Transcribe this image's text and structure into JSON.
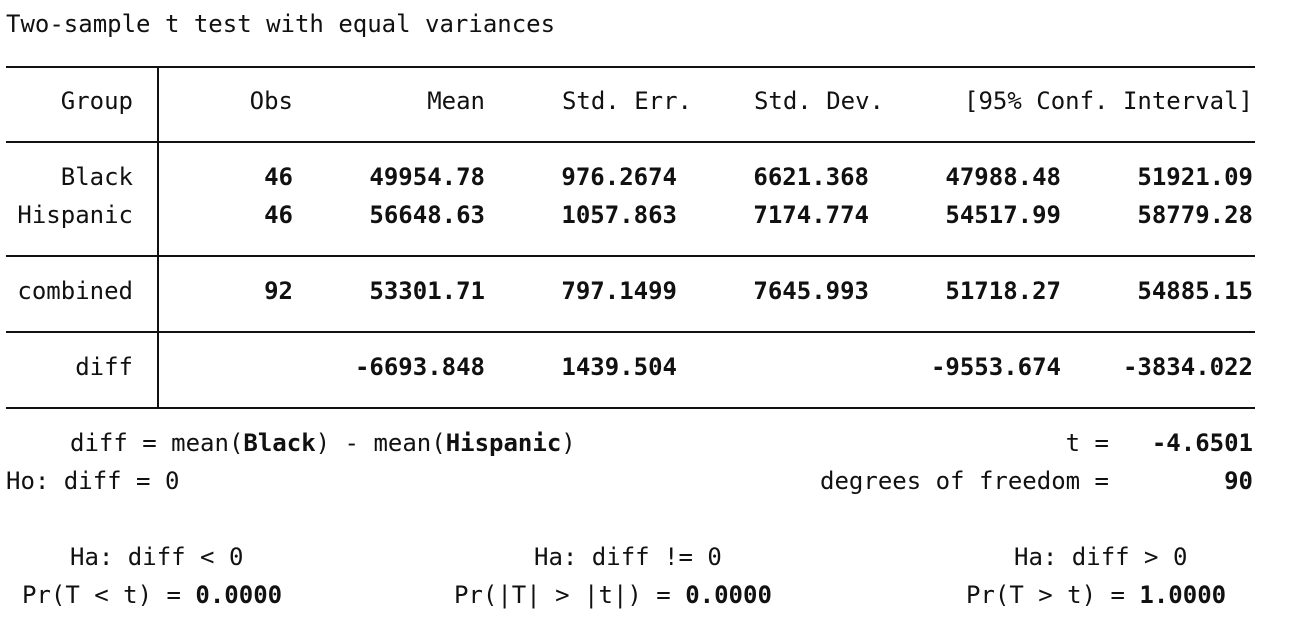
{
  "title": "Two-sample t test with equal variances",
  "table": {
    "headers": {
      "group": "Group",
      "obs": "Obs",
      "mean": "Mean",
      "std_err": "Std. Err.",
      "std_dev": "Std. Dev.",
      "ci": "[95% Conf. Interval]"
    },
    "rows": [
      {
        "group": "Black",
        "obs": "46",
        "mean": "49954.78",
        "std_err": "976.2674",
        "std_dev": "6621.368",
        "ci_low": "47988.48",
        "ci_high": "51921.09"
      },
      {
        "group": "Hispanic",
        "obs": "46",
        "mean": "56648.63",
        "std_err": "1057.863",
        "std_dev": "7174.774",
        "ci_low": "54517.99",
        "ci_high": "58779.28"
      }
    ],
    "combined": {
      "group": "combined",
      "obs": "92",
      "mean": "53301.71",
      "std_err": "797.1499",
      "std_dev": "7645.993",
      "ci_low": "51718.27",
      "ci_high": "54885.15"
    },
    "diff": {
      "group": "diff",
      "mean": "-6693.848",
      "std_err": "1439.504",
      "ci_low": "-9553.674",
      "ci_high": "-3834.022"
    }
  },
  "summary": {
    "diff_def_prefix": "diff = mean(",
    "group1": "Black",
    "diff_def_middle": ") - mean(",
    "group2": "Hispanic",
    "diff_def_suffix": ")",
    "t_label": "t =",
    "t_value": "-4.6501",
    "ho": "Ho: diff = 0",
    "df_label": "degrees of freedom =",
    "df_value": "90"
  },
  "alternatives": [
    {
      "ha": "Ha: diff < 0",
      "pr_label": "Pr(T < t) =",
      "pr_value": "0.0000"
    },
    {
      "ha": "Ha: diff != 0",
      "pr_label": "Pr(|T| > |t|) =",
      "pr_value": "0.0000"
    },
    {
      "ha": "Ha: diff > 0",
      "pr_label": "Pr(T > t) =",
      "pr_value": "1.0000"
    }
  ]
}
